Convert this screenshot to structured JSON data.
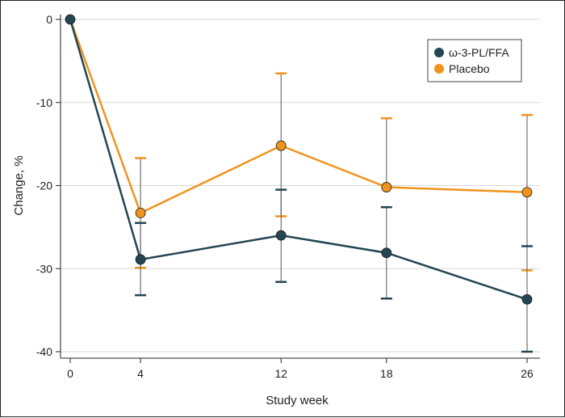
{
  "chart_data": {
    "type": "line",
    "title": "",
    "xlabel": "Study week",
    "ylabel": "Change, %",
    "x": [
      0,
      4,
      12,
      18,
      26
    ],
    "xticks": [
      "0",
      "4",
      "12",
      "18",
      "26"
    ],
    "xlim": [
      0,
      26
    ],
    "ylim": [
      -40,
      0
    ],
    "yticks": [
      0,
      -10,
      -20,
      -30,
      -40
    ],
    "ytick_labels": [
      "0",
      "-10",
      "-20",
      "-30",
      "-40"
    ],
    "grid": "horizontal",
    "legend_position": "top-right",
    "series": [
      {
        "name": "ω-3-PL/FFA",
        "color": "#244652",
        "values": [
          0,
          -28.9,
          -26.0,
          -28.1,
          -33.7
        ],
        "error_low": [
          null,
          -33.2,
          -31.6,
          -33.6,
          -40.0
        ],
        "error_high": [
          null,
          -24.5,
          -20.5,
          -22.6,
          -27.3
        ]
      },
      {
        "name": "Placebo",
        "color": "#F0931E",
        "values": [
          0,
          -23.3,
          -15.2,
          -20.2,
          -20.8
        ],
        "error_low": [
          null,
          -29.9,
          -23.7,
          null,
          -30.2
        ],
        "error_high": [
          null,
          -16.7,
          -6.5,
          -11.9,
          -11.5
        ]
      }
    ]
  }
}
